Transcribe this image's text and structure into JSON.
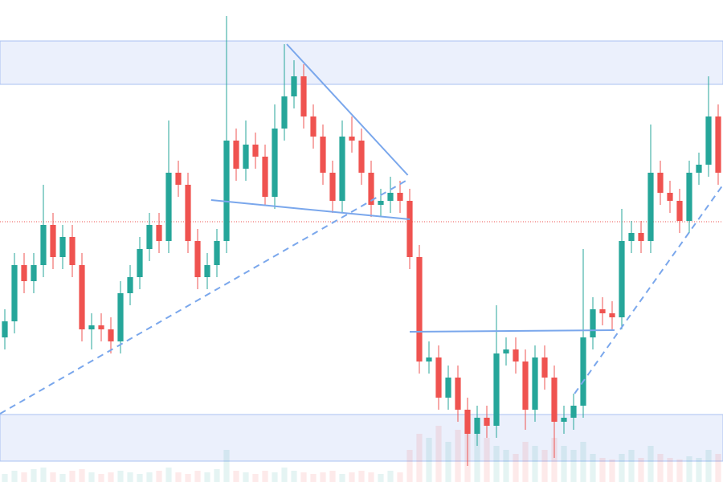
{
  "chart_data": {
    "type": "candlestick",
    "ylim": [
      0,
      600
    ],
    "xlim": [
      -0.5,
      74.5
    ],
    "up_color": "#26a69a",
    "down_color": "#ef5350",
    "open": [
      180,
      200,
      270,
      250,
      270,
      320,
      280,
      305,
      270,
      190,
      195,
      190,
      175,
      235,
      255,
      290,
      320,
      300,
      385,
      370,
      300,
      255,
      270,
      300,
      425,
      390,
      420,
      405,
      355,
      440,
      480,
      505,
      455,
      430,
      385,
      350,
      430,
      425,
      385,
      345,
      350,
      360,
      350,
      280,
      150,
      155,
      105,
      130,
      90,
      60,
      80,
      70,
      160,
      165,
      150,
      90,
      155,
      130,
      75,
      80,
      95,
      180,
      215,
      210,
      205,
      300,
      310,
      300,
      385,
      360,
      350,
      325,
      385,
      395,
      455
    ],
    "high": [
      215,
      285,
      285,
      285,
      370,
      335,
      320,
      320,
      285,
      210,
      210,
      205,
      250,
      270,
      305,
      335,
      335,
      450,
      400,
      385,
      315,
      285,
      315,
      580,
      440,
      450,
      435,
      420,
      470,
      545,
      525,
      520,
      470,
      445,
      400,
      450,
      455,
      440,
      400,
      365,
      380,
      375,
      365,
      295,
      175,
      170,
      145,
      145,
      105,
      95,
      95,
      220,
      180,
      180,
      165,
      170,
      170,
      145,
      95,
      110,
      290,
      230,
      230,
      225,
      340,
      325,
      325,
      445,
      400,
      375,
      365,
      400,
      410,
      505,
      470
    ],
    "low": [
      165,
      185,
      235,
      235,
      255,
      265,
      265,
      255,
      175,
      165,
      175,
      160,
      160,
      220,
      240,
      275,
      285,
      285,
      355,
      285,
      240,
      240,
      255,
      285,
      375,
      375,
      390,
      345,
      340,
      425,
      465,
      440,
      415,
      370,
      335,
      335,
      410,
      370,
      330,
      330,
      335,
      335,
      265,
      135,
      135,
      90,
      90,
      75,
      20,
      45,
      55,
      55,
      145,
      135,
      65,
      75,
      115,
      30,
      60,
      65,
      80,
      165,
      195,
      190,
      190,
      285,
      285,
      285,
      345,
      335,
      310,
      310,
      370,
      380,
      370
    ],
    "close": [
      200,
      270,
      250,
      270,
      320,
      280,
      305,
      270,
      190,
      195,
      190,
      175,
      235,
      255,
      290,
      320,
      300,
      385,
      370,
      300,
      255,
      270,
      300,
      425,
      390,
      420,
      405,
      355,
      440,
      480,
      505,
      455,
      430,
      385,
      350,
      430,
      425,
      385,
      345,
      350,
      360,
      350,
      280,
      150,
      155,
      105,
      130,
      90,
      60,
      80,
      70,
      160,
      165,
      150,
      90,
      155,
      130,
      75,
      80,
      95,
      180,
      215,
      210,
      205,
      300,
      310,
      300,
      385,
      360,
      350,
      325,
      385,
      395,
      455,
      385
    ],
    "volume": [
      10,
      14,
      12,
      16,
      18,
      12,
      10,
      14,
      16,
      12,
      10,
      12,
      14,
      12,
      10,
      12,
      14,
      18,
      12,
      10,
      14,
      12,
      16,
      40,
      14,
      12,
      10,
      14,
      12,
      18,
      14,
      12,
      10,
      12,
      14,
      10,
      12,
      14,
      12,
      10,
      14,
      12,
      40,
      60,
      55,
      70,
      50,
      65,
      75,
      60,
      55,
      45,
      40,
      35,
      50,
      45,
      40,
      55,
      45,
      40,
      50,
      35,
      30,
      28,
      35,
      40,
      30,
      45,
      35,
      30,
      28,
      32,
      30,
      40,
      35
    ],
    "vlim": [
      0,
      600
    ],
    "zones": [
      [
        495,
        549
      ],
      [
        26,
        84
      ]
    ],
    "level": 324,
    "trendlines": [
      {
        "points": [
          [
            -0.5,
            85
          ],
          [
            41.6,
            375
          ]
        ],
        "dashed": true
      },
      {
        "points": [
          [
            59.1,
            110
          ],
          [
            74.5,
            370
          ]
        ],
        "dashed": true
      },
      {
        "points": [
          [
            29.25,
            545
          ],
          [
            41.8,
            382
          ]
        ],
        "dashed": false
      },
      {
        "points": [
          [
            21.4,
            351
          ],
          [
            42,
            327
          ]
        ],
        "dashed": false
      },
      {
        "points": [
          [
            42,
            187
          ],
          [
            63.25,
            189
          ]
        ],
        "dashed": false
      }
    ]
  }
}
